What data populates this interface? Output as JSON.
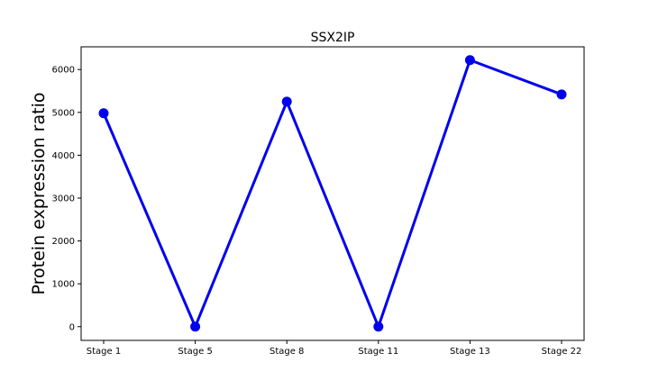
{
  "chart_data": {
    "type": "line",
    "title": "SSX2IP",
    "xlabel": "",
    "ylabel": "Protein expression ratio",
    "categories": [
      "Stage 1",
      "Stage 5",
      "Stage 8",
      "Stage 11",
      "Stage 13",
      "Stage 22"
    ],
    "series": [
      {
        "values": [
          4980,
          0,
          5250,
          0,
          6220,
          5420
        ],
        "color": "#0000ee"
      }
    ],
    "ylim": [
      -320,
      6530
    ],
    "yticks": [
      0,
      1000,
      2000,
      3000,
      4000,
      5000,
      6000
    ],
    "grid": false,
    "legend": "none"
  }
}
